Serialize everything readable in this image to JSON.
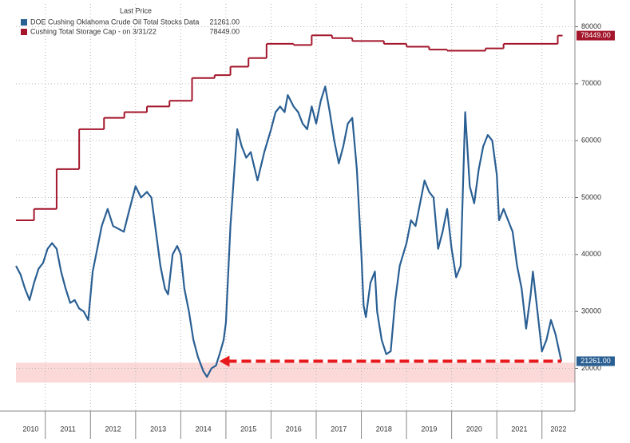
{
  "chart_data": {
    "type": "line",
    "legend_title": "Last Price",
    "xlim": [
      2010.35,
      2022.73
    ],
    "xticks": [
      {
        "value": 2010,
        "label": "2010"
      },
      {
        "value": 2011,
        "label": "2011"
      },
      {
        "value": 2012,
        "label": "2012"
      },
      {
        "value": 2013,
        "label": "2013"
      },
      {
        "value": 2014,
        "label": "2014"
      },
      {
        "value": 2015,
        "label": "2015"
      },
      {
        "value": 2016,
        "label": "2016"
      },
      {
        "value": 2017,
        "label": "2017"
      },
      {
        "value": 2018,
        "label": "2018"
      },
      {
        "value": 2019,
        "label": "2019"
      },
      {
        "value": 2020,
        "label": "2020"
      },
      {
        "value": 2021,
        "label": "2021"
      },
      {
        "value": 2022,
        "label": "2022"
      }
    ],
    "ylim": [
      12500,
      84000
    ],
    "yticks": [
      20000,
      30000,
      40000,
      50000,
      60000,
      70000,
      80000
    ],
    "grid": true,
    "highlight_band": {
      "range": [
        17500,
        21000
      ],
      "color": "#fbd9d9"
    },
    "arrow": {
      "x": [
        2014.85,
        2022.43
      ],
      "y": 21261,
      "color": "#e8191d"
    },
    "series": [
      {
        "name": "DOE Cushing Oklahoma Crude Oil Total Stocks Data",
        "color": "#2a5f93",
        "style": "line",
        "last_label": "21261.00",
        "x": [
          2010.35,
          2010.45,
          2010.55,
          2010.65,
          2010.75,
          2010.85,
          2010.95,
          2011.05,
          2011.15,
          2011.25,
          2011.35,
          2011.45,
          2011.55,
          2011.65,
          2011.75,
          2011.85,
          2011.95,
          2012.05,
          2012.15,
          2012.25,
          2012.38,
          2012.5,
          2012.62,
          2012.74,
          2012.85,
          2013.0,
          2013.12,
          2013.25,
          2013.35,
          2013.45,
          2013.55,
          2013.65,
          2013.72,
          2013.82,
          2013.92,
          2014.0,
          2014.08,
          2014.18,
          2014.28,
          2014.38,
          2014.5,
          2014.58,
          2014.68,
          2014.78,
          2014.88,
          2014.95,
          2015.0,
          2015.1,
          2015.25,
          2015.35,
          2015.45,
          2015.55,
          2015.7,
          2015.85,
          2016.0,
          2016.1,
          2016.2,
          2016.3,
          2016.37,
          2016.5,
          2016.6,
          2016.7,
          2016.8,
          2016.9,
          2017.0,
          2017.1,
          2017.2,
          2017.3,
          2017.4,
          2017.5,
          2017.6,
          2017.7,
          2017.8,
          2017.9,
          2018.0,
          2018.05,
          2018.1,
          2018.2,
          2018.3,
          2018.35,
          2018.45,
          2018.55,
          2018.65,
          2018.75,
          2018.85,
          2019.0,
          2019.1,
          2019.2,
          2019.3,
          2019.4,
          2019.5,
          2019.6,
          2019.7,
          2019.8,
          2019.9,
          2020.0,
          2020.1,
          2020.2,
          2020.3,
          2020.4,
          2020.5,
          2020.6,
          2020.7,
          2020.8,
          2020.9,
          2021.0,
          2021.05,
          2021.15,
          2021.25,
          2021.35,
          2021.45,
          2021.55,
          2021.65,
          2021.75,
          2021.8,
          2021.9,
          2022.0,
          2022.1,
          2022.2,
          2022.3,
          2022.43
        ],
        "values": [
          38000,
          36500,
          34000,
          32000,
          35000,
          37500,
          38500,
          41000,
          42000,
          41000,
          37000,
          34000,
          31500,
          32000,
          30500,
          30000,
          28500,
          37000,
          41000,
          45000,
          48000,
          45000,
          44500,
          44000,
          47500,
          52000,
          50000,
          51000,
          50000,
          44000,
          38000,
          34000,
          33000,
          40000,
          41500,
          40000,
          34000,
          30000,
          25000,
          22000,
          19500,
          18500,
          20000,
          20500,
          23000,
          25000,
          28000,
          45000,
          62000,
          59000,
          57000,
          58000,
          53000,
          58000,
          62000,
          65000,
          66000,
          65000,
          68000,
          66000,
          65000,
          63000,
          62000,
          66000,
          63000,
          67000,
          69500,
          65000,
          60000,
          56000,
          59000,
          63000,
          64000,
          55000,
          40000,
          31000,
          29000,
          35000,
          37000,
          30000,
          25000,
          22500,
          23000,
          32000,
          38000,
          42000,
          46000,
          45000,
          49000,
          53000,
          51000,
          50000,
          41000,
          44000,
          48000,
          41000,
          36000,
          38000,
          65000,
          52000,
          49000,
          55000,
          59000,
          61000,
          60000,
          54000,
          46000,
          48000,
          46000,
          44000,
          38000,
          34000,
          27000,
          33000,
          37000,
          30000,
          23000,
          25000,
          28500,
          26000,
          21261
        ]
      },
      {
        "name": "Cushing Total Storage Cap - on 3/31/22",
        "color": "#a3162b",
        "style": "step",
        "last_label": "78449.00",
        "x": [
          2010.35,
          2010.75,
          2011.25,
          2011.75,
          2012.3,
          2012.75,
          2013.25,
          2013.75,
          2014.25,
          2014.75,
          2015.1,
          2015.5,
          2015.9,
          2016.5,
          2016.9,
          2017.35,
          2017.8,
          2018.5,
          2019.0,
          2019.5,
          2019.9,
          2020.75,
          2021.15,
          2022.35
        ],
        "values": [
          46000,
          48000,
          55000,
          62000,
          64000,
          65000,
          66000,
          67000,
          71000,
          71500,
          73000,
          74500,
          77000,
          76800,
          78500,
          78000,
          77500,
          77000,
          76500,
          76000,
          75800,
          76200,
          77000,
          78449
        ]
      }
    ]
  }
}
